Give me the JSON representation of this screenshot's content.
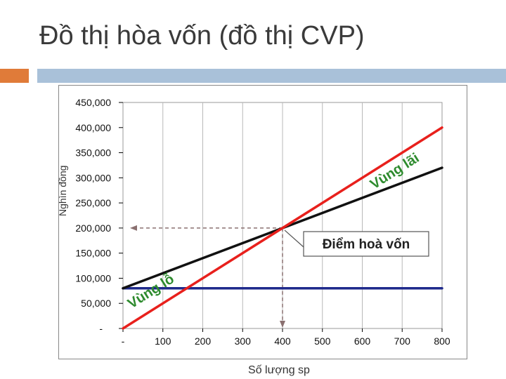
{
  "slide": {
    "title": "Đồ thị hòa vốn (đồ thị CVP)",
    "accent_colors": [
      "#e07b39",
      "#a9c1d9"
    ]
  },
  "chart_data": {
    "type": "line",
    "title": "",
    "xlabel": "Số lượng sp",
    "ylabel": "Nghìn đồng",
    "xlim": [
      0,
      800
    ],
    "ylim": [
      0,
      450000
    ],
    "xticks": [
      "-",
      "100",
      "200",
      "300",
      "400",
      "500",
      "600",
      "700",
      "800"
    ],
    "yticks": [
      "-",
      "50,000",
      "100,000",
      "150,000",
      "200,000",
      "250,000",
      "300,000",
      "350,000",
      "400,000",
      "450,000"
    ],
    "grid": "vertical",
    "series": [
      {
        "color": "#e8201c",
        "x": [
          0,
          800
        ],
        "y": [
          0,
          400000
        ]
      },
      {
        "color": "#111111",
        "x": [
          0,
          800
        ],
        "y": [
          80000,
          320000
        ]
      },
      {
        "color": "#1f2a8c",
        "x": [
          0,
          800
        ],
        "y": [
          80000,
          80000
        ]
      }
    ],
    "break_even": {
      "x": 400,
      "y": 200000
    },
    "annotations": {
      "break_even_label": "Điểm hoà vốn",
      "profit_zone": "Vùng lãi",
      "loss_zone": "Vùng lỗ"
    }
  }
}
